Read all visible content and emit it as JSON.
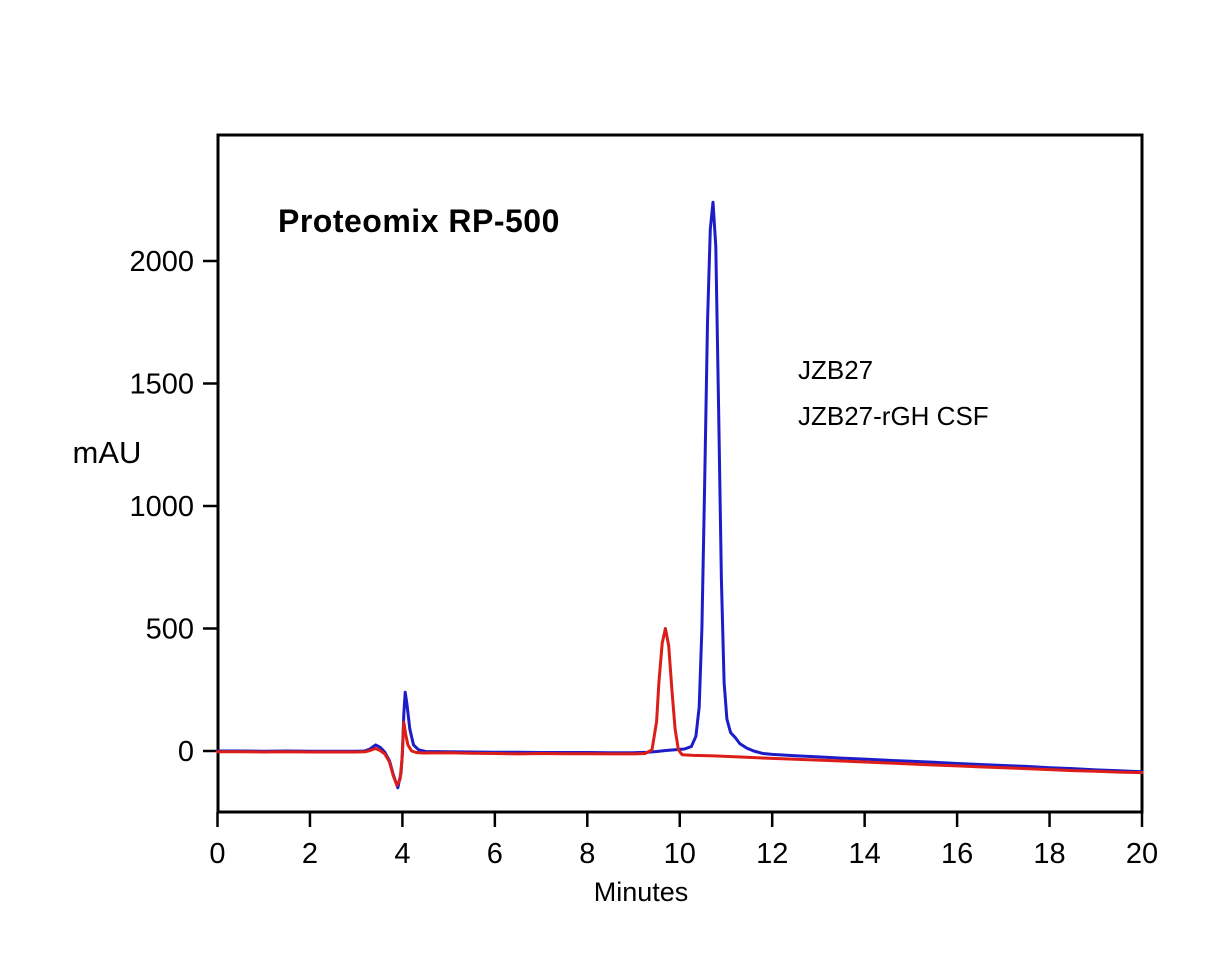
{
  "chart": {
    "title": "Proteomix RP-500",
    "title_color": "#29A9E2"
  },
  "chart_data": {
    "type": "line",
    "title": "Proteomix RP-500",
    "xlabel": "Minutes",
    "ylabel": "mAU",
    "xlim": [
      0,
      20
    ],
    "ylim": [
      -249,
      2514
    ],
    "x_ticks": [
      "0",
      "2",
      "4",
      "6",
      "8",
      "10",
      "12",
      "14",
      "16",
      "18",
      "20"
    ],
    "y_ticks": [
      "0",
      "500",
      "1000",
      "1500",
      "2000"
    ],
    "grid": false,
    "legend_position": "right-of-peak, inside plot",
    "axis_color": "#000000",
    "series": [
      {
        "name": "JZB27-rGH CSF",
        "color": "#1C1CC9",
        "points": [
          [
            0,
            0
          ],
          [
            0.5,
            0
          ],
          [
            1,
            -1
          ],
          [
            1.5,
            0
          ],
          [
            2,
            -1
          ],
          [
            2.5,
            -1
          ],
          [
            3,
            -1
          ],
          [
            3.18,
            0
          ],
          [
            3.3,
            8
          ],
          [
            3.42,
            25
          ],
          [
            3.52,
            15
          ],
          [
            3.62,
            -5
          ],
          [
            3.72,
            -40
          ],
          [
            3.8,
            -95
          ],
          [
            3.9,
            -150
          ],
          [
            3.97,
            -90
          ],
          [
            4.0,
            -10
          ],
          [
            4.03,
            150
          ],
          [
            4.06,
            240
          ],
          [
            4.1,
            190
          ],
          [
            4.16,
            90
          ],
          [
            4.24,
            25
          ],
          [
            4.35,
            5
          ],
          [
            4.5,
            -2
          ],
          [
            5,
            -3
          ],
          [
            5.5,
            -4
          ],
          [
            6,
            -5
          ],
          [
            6.5,
            -5
          ],
          [
            7,
            -6
          ],
          [
            7.5,
            -6
          ],
          [
            8,
            -6
          ],
          [
            8.5,
            -7
          ],
          [
            9,
            -7
          ],
          [
            9.3,
            -5
          ],
          [
            9.5,
            -2
          ],
          [
            9.7,
            2
          ],
          [
            9.9,
            5
          ],
          [
            10.1,
            8
          ],
          [
            10.25,
            18
          ],
          [
            10.35,
            60
          ],
          [
            10.42,
            180
          ],
          [
            10.48,
            500
          ],
          [
            10.54,
            1100
          ],
          [
            10.6,
            1750
          ],
          [
            10.66,
            2130
          ],
          [
            10.72,
            2240
          ],
          [
            10.78,
            2060
          ],
          [
            10.84,
            1400
          ],
          [
            10.9,
            700
          ],
          [
            10.96,
            280
          ],
          [
            11.02,
            130
          ],
          [
            11.1,
            75
          ],
          [
            11.2,
            55
          ],
          [
            11.3,
            30
          ],
          [
            11.45,
            12
          ],
          [
            11.6,
            0
          ],
          [
            11.8,
            -10
          ],
          [
            12,
            -14
          ],
          [
            12.5,
            -19
          ],
          [
            13,
            -24
          ],
          [
            13.5,
            -29
          ],
          [
            14,
            -33
          ],
          [
            14.5,
            -38
          ],
          [
            15,
            -42
          ],
          [
            15.5,
            -46
          ],
          [
            16,
            -51
          ],
          [
            16.5,
            -55
          ],
          [
            17,
            -59
          ],
          [
            17.5,
            -63
          ],
          [
            18,
            -68
          ],
          [
            18.5,
            -72
          ],
          [
            19,
            -77
          ],
          [
            19.5,
            -81
          ],
          [
            20,
            -85
          ]
        ]
      },
      {
        "name": "JZB27",
        "color": "#DD1E18",
        "points": [
          [
            0,
            -3
          ],
          [
            0.5,
            -3
          ],
          [
            1,
            -4
          ],
          [
            1.5,
            -3
          ],
          [
            2,
            -4
          ],
          [
            2.5,
            -4
          ],
          [
            3,
            -4
          ],
          [
            3.2,
            -3
          ],
          [
            3.3,
            2
          ],
          [
            3.42,
            10
          ],
          [
            3.52,
            2
          ],
          [
            3.62,
            -12
          ],
          [
            3.72,
            -45
          ],
          [
            3.8,
            -100
          ],
          [
            3.88,
            -140
          ],
          [
            3.95,
            -115
          ],
          [
            3.99,
            -40
          ],
          [
            4.01,
            40
          ],
          [
            4.03,
            118
          ],
          [
            4.07,
            70
          ],
          [
            4.12,
            25
          ],
          [
            4.2,
            0
          ],
          [
            4.3,
            -6
          ],
          [
            4.45,
            -8
          ],
          [
            5,
            -7
          ],
          [
            5.5,
            -9
          ],
          [
            6,
            -10
          ],
          [
            6.5,
            -12
          ],
          [
            7,
            -10
          ],
          [
            7.5,
            -11
          ],
          [
            8,
            -11
          ],
          [
            8.5,
            -12
          ],
          [
            9,
            -12
          ],
          [
            9.25,
            -10
          ],
          [
            9.4,
            5
          ],
          [
            9.5,
            120
          ],
          [
            9.55,
            280
          ],
          [
            9.62,
            440
          ],
          [
            9.69,
            500
          ],
          [
            9.76,
            430
          ],
          [
            9.83,
            250
          ],
          [
            9.9,
            90
          ],
          [
            9.97,
            5
          ],
          [
            10.05,
            -15
          ],
          [
            10.3,
            -18
          ],
          [
            10.75,
            -20
          ],
          [
            11.5,
            -26
          ],
          [
            12,
            -30
          ],
          [
            12.5,
            -34
          ],
          [
            13,
            -37
          ],
          [
            13.5,
            -41
          ],
          [
            14,
            -45
          ],
          [
            14.5,
            -49
          ],
          [
            15,
            -53
          ],
          [
            15.5,
            -57
          ],
          [
            16,
            -61
          ],
          [
            16.5,
            -65
          ],
          [
            17,
            -68
          ],
          [
            17.5,
            -72
          ],
          [
            18,
            -76
          ],
          [
            18.5,
            -80
          ],
          [
            19,
            -83
          ],
          [
            19.5,
            -86
          ],
          [
            20,
            -88
          ]
        ]
      }
    ]
  }
}
